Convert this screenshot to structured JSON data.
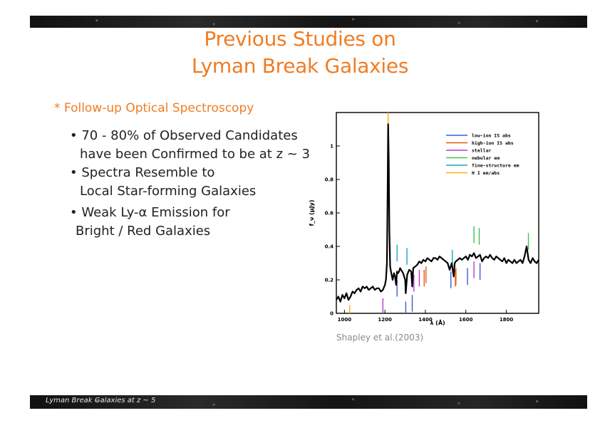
{
  "slide": {
    "title_line1": "Previous Studies on",
    "title_line2": "Lyman Break Galaxies",
    "section_heading": "* Follow-up Optical Spectroscopy",
    "bullets": [
      {
        "line1": "• 70 - 80% of Observed Candidates",
        "line2": "have been Confirmed to be at z ~ 3"
      },
      {
        "line1": "• Spectra Resemble to",
        "line2": "Local Star-forming Galaxies"
      },
      {
        "line1": "• Weak Ly-α Emission for",
        "line2": "Bright / Red Galaxies"
      }
    ],
    "caption": "Shapley et al.(2003)",
    "footer": "Lyman Break Galaxies at z ~ 5"
  },
  "colors": {
    "title": "#f07c23",
    "bar": "#1c1c1c"
  },
  "chart_data": {
    "type": "line",
    "xlabel": "λ (Å)",
    "ylabel": "f_ν (μJy)",
    "xlim": [
      960,
      1960
    ],
    "ylim": [
      0,
      1.2
    ],
    "xticks": [
      1000,
      1200,
      1400,
      1600,
      1800
    ],
    "yticks": [
      0,
      0.2,
      0.4,
      0.6,
      0.8,
      1
    ],
    "legend_position": "top-right",
    "legend": [
      {
        "name": "low-ion IS abs",
        "color": "#3b5bdb"
      },
      {
        "name": "high-ion IS abs",
        "color": "#e8590c"
      },
      {
        "name": "stellar",
        "color": "#ae3ec9"
      },
      {
        "name": "nebular em",
        "color": "#40c057"
      },
      {
        "name": "fine-structure em",
        "color": "#15aabf"
      },
      {
        "name": "H I em/abs",
        "color": "#fab005"
      }
    ],
    "spectrum": {
      "x": [
        960,
        970,
        980,
        990,
        1000,
        1010,
        1020,
        1030,
        1040,
        1050,
        1060,
        1070,
        1080,
        1090,
        1100,
        1110,
        1120,
        1130,
        1140,
        1150,
        1160,
        1170,
        1180,
        1190,
        1200,
        1205,
        1210,
        1213,
        1216,
        1219,
        1222,
        1226,
        1230,
        1238,
        1245,
        1250,
        1255,
        1260,
        1265,
        1270,
        1275,
        1280,
        1290,
        1300,
        1303,
        1310,
        1320,
        1330,
        1335,
        1340,
        1350,
        1360,
        1370,
        1380,
        1390,
        1400,
        1410,
        1420,
        1430,
        1440,
        1450,
        1460,
        1470,
        1480,
        1490,
        1500,
        1510,
        1520,
        1530,
        1540,
        1545,
        1550,
        1560,
        1570,
        1580,
        1590,
        1600,
        1610,
        1620,
        1630,
        1640,
        1650,
        1660,
        1670,
        1680,
        1690,
        1700,
        1710,
        1720,
        1730,
        1740,
        1750,
        1760,
        1770,
        1780,
        1790,
        1800,
        1810,
        1820,
        1830,
        1840,
        1850,
        1860,
        1870,
        1880,
        1890,
        1900,
        1910,
        1920,
        1930,
        1940,
        1950,
        1960
      ],
      "y": [
        0.08,
        0.1,
        0.07,
        0.11,
        0.09,
        0.12,
        0.08,
        0.1,
        0.13,
        0.12,
        0.14,
        0.15,
        0.13,
        0.16,
        0.15,
        0.16,
        0.14,
        0.15,
        0.16,
        0.14,
        0.15,
        0.15,
        0.13,
        0.14,
        0.17,
        0.2,
        0.3,
        0.7,
        1.13,
        0.9,
        0.5,
        0.28,
        0.25,
        0.2,
        0.24,
        0.22,
        0.17,
        0.25,
        0.24,
        0.25,
        0.27,
        0.26,
        0.24,
        0.2,
        0.12,
        0.23,
        0.26,
        0.25,
        0.16,
        0.27,
        0.28,
        0.29,
        0.31,
        0.3,
        0.32,
        0.31,
        0.33,
        0.32,
        0.31,
        0.33,
        0.33,
        0.32,
        0.34,
        0.33,
        0.32,
        0.31,
        0.3,
        0.26,
        0.3,
        0.22,
        0.3,
        0.31,
        0.32,
        0.33,
        0.32,
        0.33,
        0.34,
        0.32,
        0.35,
        0.34,
        0.36,
        0.33,
        0.34,
        0.35,
        0.31,
        0.33,
        0.34,
        0.33,
        0.35,
        0.33,
        0.32,
        0.34,
        0.33,
        0.32,
        0.31,
        0.33,
        0.3,
        0.32,
        0.31,
        0.3,
        0.32,
        0.3,
        0.31,
        0.32,
        0.3,
        0.34,
        0.4,
        0.32,
        0.3,
        0.33,
        0.31,
        0.3,
        0.32
      ]
    },
    "feature_lines": [
      {
        "x": 1026,
        "kind": "H I em/abs"
      },
      {
        "x": 1190,
        "kind": "stellar"
      },
      {
        "x": 1216,
        "kind": "H I em/abs"
      },
      {
        "x": 1260,
        "kind": "fine-structure em"
      },
      {
        "x": 1260,
        "kind": "low-ion IS abs"
      },
      {
        "x": 1303,
        "kind": "low-ion IS abs"
      },
      {
        "x": 1309,
        "kind": "fine-structure em"
      },
      {
        "x": 1335,
        "kind": "low-ion IS abs"
      },
      {
        "x": 1343,
        "kind": "stellar"
      },
      {
        "x": 1370,
        "kind": "stellar"
      },
      {
        "x": 1394,
        "kind": "high-ion IS abs"
      },
      {
        "x": 1403,
        "kind": "high-ion IS abs"
      },
      {
        "x": 1526,
        "kind": "low-ion IS abs"
      },
      {
        "x": 1533,
        "kind": "fine-structure em"
      },
      {
        "x": 1548,
        "kind": "high-ion IS abs"
      },
      {
        "x": 1551,
        "kind": "high-ion IS abs"
      },
      {
        "x": 1640,
        "kind": "nebular em"
      },
      {
        "x": 1608,
        "kind": "low-ion IS abs"
      },
      {
        "x": 1640,
        "kind": "stellar"
      },
      {
        "x": 1670,
        "kind": "low-ion IS abs"
      },
      {
        "x": 1666,
        "kind": "nebular em"
      },
      {
        "x": 1909,
        "kind": "nebular em"
      }
    ]
  }
}
